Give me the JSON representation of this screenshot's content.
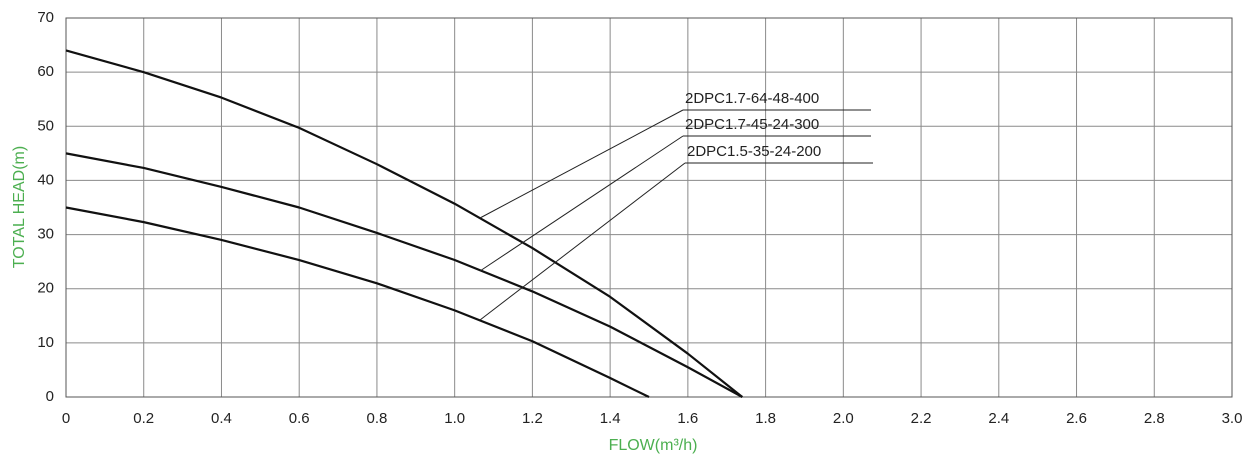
{
  "chart_data": {
    "type": "line",
    "x_label": "FLOW(m³/h)",
    "y_label": "TOTAL HEAD(m)",
    "xlim": [
      0,
      3
    ],
    "ylim": [
      0,
      70
    ],
    "xticks": [
      0,
      0.2,
      0.4,
      0.6,
      0.8,
      {
        "value": 1,
        "label": "1.0"
      },
      1.2,
      1.4,
      1.6,
      1.8,
      {
        "value": 2,
        "label": "2.0"
      },
      2.2,
      2.4,
      2.6,
      2.8,
      {
        "value": 3,
        "label": "3.0"
      }
    ],
    "yticks": [
      0,
      10,
      20,
      30,
      40,
      50,
      60,
      70
    ],
    "grid": true,
    "series": [
      {
        "name": "2DPC1.7-64-48-400",
        "color": "#111111",
        "x": [
          0,
          0.2,
          0.4,
          0.6,
          0.8,
          1.0,
          1.2,
          1.4,
          1.6,
          1.74
        ],
        "values": [
          64,
          60,
          55.3,
          49.7,
          43,
          35.7,
          27.5,
          18.5,
          8,
          0
        ]
      },
      {
        "name": "2DPC1.7-45-24-300",
        "color": "#111111",
        "x": [
          0,
          0.2,
          0.4,
          0.6,
          0.8,
          1.0,
          1.2,
          1.4,
          1.6,
          1.74
        ],
        "values": [
          45,
          42.3,
          38.8,
          35,
          30.3,
          25.3,
          19.5,
          13,
          5.5,
          0
        ]
      },
      {
        "name": "2DPC1.5-35-24-200",
        "color": "#111111",
        "x": [
          0,
          0.2,
          0.4,
          0.6,
          0.8,
          1.0,
          1.2,
          1.4,
          1.5
        ],
        "values": [
          35,
          32.3,
          29,
          25.3,
          21,
          16,
          10.3,
          3.5,
          0
        ]
      }
    ]
  }
}
